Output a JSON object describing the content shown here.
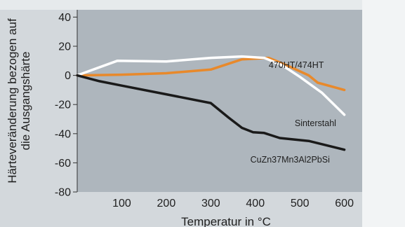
{
  "chart_data": {
    "type": "line",
    "title": "",
    "xlabel": "Temperatur in °C",
    "ylabel": [
      "Härteveränderung bezogen auf",
      "die Ausgangshärte"
    ],
    "xlim": [
      0,
      640
    ],
    "ylim": [
      -80,
      45
    ],
    "xticks": [
      100,
      200,
      300,
      400,
      500,
      600
    ],
    "yticks": [
      40,
      20,
      0,
      -20,
      -40,
      -60,
      -80
    ],
    "grid": false,
    "legend": "inline labels",
    "plot_background": "#aeb6bd",
    "series": [
      {
        "name": "470HT/474HT",
        "color": "#e8892b",
        "points": [
          [
            0,
            0
          ],
          [
            100,
            0.5
          ],
          [
            200,
            1.5
          ],
          [
            300,
            4
          ],
          [
            370,
            11
          ],
          [
            430,
            12
          ],
          [
            470,
            7
          ],
          [
            520,
            0
          ],
          [
            540,
            -5
          ],
          [
            600,
            -10
          ]
        ]
      },
      {
        "name": "Sinterstahl",
        "color": "#ffffff",
        "points": [
          [
            0,
            0
          ],
          [
            90,
            10
          ],
          [
            200,
            9.5
          ],
          [
            300,
            12
          ],
          [
            370,
            13
          ],
          [
            420,
            12
          ],
          [
            460,
            7
          ],
          [
            500,
            -1
          ],
          [
            550,
            -12
          ],
          [
            600,
            -27
          ]
        ]
      },
      {
        "name": "CuZn37Mn3Al2PbSi",
        "color": "#1a1a1a",
        "points": [
          [
            0,
            0
          ],
          [
            50,
            -4
          ],
          [
            100,
            -7
          ],
          [
            200,
            -13
          ],
          [
            300,
            -19
          ],
          [
            340,
            -29
          ],
          [
            370,
            -36
          ],
          [
            395,
            -39
          ],
          [
            420,
            -39.5
          ],
          [
            455,
            -43
          ],
          [
            520,
            -45
          ],
          [
            560,
            -48
          ],
          [
            600,
            -51
          ]
        ]
      }
    ],
    "label_positions": {
      "470HT/474HT": [
        492,
        7
      ],
      "Sinterstahl": [
        535,
        -33
      ],
      "CuZn37Mn3Al2PbSi": [
        478,
        -58
      ]
    }
  }
}
